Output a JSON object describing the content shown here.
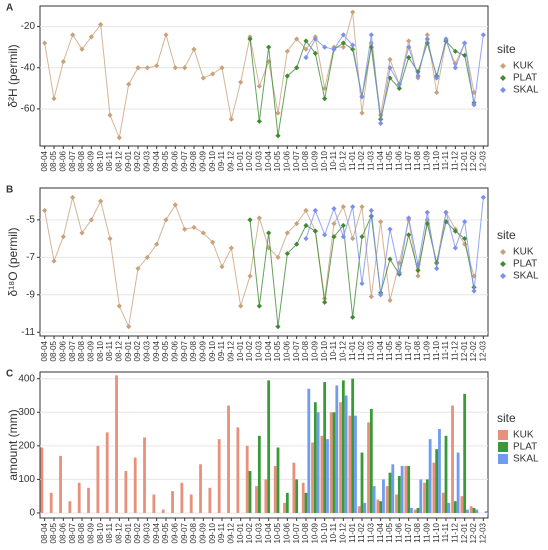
{
  "chart_data": [
    {
      "type": "line",
      "panel": "A",
      "y_label": "δ²H (permil)",
      "legend_title": "site",
      "categories": [
        "08-04",
        "08-05",
        "08-06",
        "08-07",
        "08-08",
        "08-09",
        "08-10",
        "08-11",
        "08-12",
        "09-01",
        "09-02",
        "09-03",
        "09-04",
        "09-05",
        "09-06",
        "09-07",
        "09-08",
        "09-09",
        "09-10",
        "09-11",
        "09-12",
        "10-01",
        "10-02",
        "10-03",
        "10-04",
        "10-05",
        "10-06",
        "10-07",
        "10-08",
        "10-09",
        "10-10",
        "10-11",
        "10-12",
        "11-01",
        "11-02",
        "11-03",
        "11-04",
        "11-05",
        "11-06",
        "11-07",
        "11-08",
        "11-09",
        "11-10",
        "11-11",
        "11-12",
        "12-01",
        "12-02",
        "12-03"
      ],
      "ylim": [
        -78,
        -10
      ],
      "yticks": [
        -60,
        -40,
        -20
      ],
      "grid": true,
      "series": [
        {
          "name": "KUK",
          "color": "#c9a27c",
          "values": [
            -28,
            -55,
            -37,
            -24,
            -31,
            -25,
            -19,
            -63,
            -74,
            -48,
            -40,
            -40,
            -39,
            -24,
            -40,
            -40,
            -31,
            -45,
            -43,
            -40,
            -65,
            -47,
            -25,
            -49,
            -37,
            -62,
            -32,
            -26,
            -31,
            -25,
            -50,
            -30,
            -30,
            -13,
            -62,
            -28,
            -63,
            -36,
            -48,
            -27,
            -45,
            -24,
            -52,
            -27,
            -38,
            -28,
            -52,
            null
          ]
        },
        {
          "name": "PLAT",
          "color": "#3f8a32",
          "values": [
            null,
            null,
            null,
            null,
            null,
            null,
            null,
            null,
            null,
            null,
            null,
            null,
            null,
            null,
            null,
            null,
            null,
            null,
            null,
            null,
            null,
            null,
            -26,
            -66,
            -30,
            -73,
            -44,
            -40,
            -27,
            -33,
            -55,
            -31,
            -28,
            -31,
            -54,
            -30,
            -65,
            -45,
            -50,
            -35,
            -42,
            -28,
            -44,
            -27,
            -32,
            -34,
            -57,
            null
          ]
        },
        {
          "name": "SKAL",
          "color": "#7b8ff0",
          "values": [
            null,
            null,
            null,
            null,
            null,
            null,
            null,
            null,
            null,
            null,
            null,
            null,
            null,
            null,
            null,
            null,
            null,
            null,
            null,
            null,
            null,
            null,
            null,
            null,
            null,
            null,
            null,
            null,
            -35,
            -26,
            -30,
            -31,
            -24,
            -29,
            -54,
            -24,
            -67,
            -40,
            -48,
            -30,
            -44,
            -26,
            -45,
            -26,
            -40,
            -28,
            -58,
            -24
          ]
        }
      ]
    },
    {
      "type": "line",
      "panel": "B",
      "y_label": "δ¹⁸O (permil)",
      "legend_title": "site",
      "categories": [
        "08-04",
        "08-05",
        "08-06",
        "08-07",
        "08-08",
        "08-09",
        "08-10",
        "08-11",
        "08-12",
        "09-01",
        "09-02",
        "09-03",
        "09-04",
        "09-05",
        "09-06",
        "09-07",
        "09-08",
        "09-09",
        "09-10",
        "09-11",
        "09-12",
        "10-01",
        "10-02",
        "10-03",
        "10-04",
        "10-05",
        "10-06",
        "10-07",
        "10-08",
        "10-09",
        "10-10",
        "10-11",
        "10-12",
        "11-01",
        "11-02",
        "11-03",
        "11-04",
        "11-05",
        "11-06",
        "11-07",
        "11-08",
        "11-09",
        "11-10",
        "11-11",
        "11-12",
        "12-01",
        "12-02",
        "12-03"
      ],
      "ylim": [
        -11.2,
        -3.3
      ],
      "yticks": [
        -11,
        -9,
        -7,
        -5
      ],
      "grid": true,
      "series": [
        {
          "name": "KUK",
          "color": "#c9a27c",
          "values": [
            -4.5,
            -7.2,
            -5.9,
            -3.8,
            -5.7,
            -5.0,
            -4.0,
            -6.0,
            -9.6,
            -10.7,
            -7.6,
            -7.0,
            -6.3,
            -5.0,
            -4.2,
            -5.5,
            -5.4,
            -5.7,
            -6.2,
            -7.5,
            -6.5,
            -9.6,
            -8.0,
            -4.9,
            -6.5,
            -7.0,
            -5.7,
            -5.2,
            -4.5,
            -5.6,
            -9.2,
            -5.2,
            -4.3,
            -6.0,
            -4.3,
            -9.1,
            -5.1,
            -9.3,
            -7.3,
            -5.0,
            -8.0,
            -5.0,
            -7.3,
            -4.6,
            -5.5,
            -6.3,
            -8.0,
            null
          ]
        },
        {
          "name": "PLAT",
          "color": "#3f8a32",
          "values": [
            null,
            null,
            null,
            null,
            null,
            null,
            null,
            null,
            null,
            null,
            null,
            null,
            null,
            null,
            null,
            null,
            null,
            null,
            null,
            null,
            null,
            null,
            -5.0,
            -9.6,
            -5.7,
            -10.7,
            -6.8,
            -6.3,
            -5.3,
            -5.6,
            -9.4,
            -5.9,
            -5.3,
            -10.2,
            -5.9,
            -4.8,
            -8.9,
            -7.1,
            -7.9,
            -5.8,
            -7.7,
            -5.2,
            -7.3,
            -5.1,
            -5.6,
            -6.0,
            -8.6,
            null
          ]
        },
        {
          "name": "SKAL",
          "color": "#7b8ff0",
          "values": [
            null,
            null,
            null,
            null,
            null,
            null,
            null,
            null,
            null,
            null,
            null,
            null,
            null,
            null,
            null,
            null,
            null,
            null,
            null,
            null,
            null,
            null,
            null,
            null,
            null,
            null,
            null,
            null,
            -6.0,
            -4.5,
            -5.8,
            -4.4,
            -5.9,
            -4.3,
            -8.4,
            -4.5,
            -9.0,
            -5.5,
            -7.8,
            -4.9,
            -7.4,
            -4.6,
            -7.6,
            -4.6,
            -6.5,
            -5.1,
            -8.8,
            -3.8
          ]
        }
      ]
    },
    {
      "type": "bar",
      "panel": "C",
      "y_label": "amount (mm)",
      "legend_title": "site",
      "categories": [
        "08-04",
        "08-05",
        "08-06",
        "08-07",
        "08-08",
        "08-09",
        "08-10",
        "08-11",
        "08-12",
        "09-01",
        "09-02",
        "09-03",
        "09-04",
        "09-05",
        "09-06",
        "09-07",
        "09-08",
        "09-09",
        "09-10",
        "09-11",
        "09-12",
        "10-01",
        "10-02",
        "10-03",
        "10-04",
        "10-05",
        "10-06",
        "10-07",
        "10-08",
        "10-09",
        "10-10",
        "10-11",
        "10-12",
        "11-01",
        "11-02",
        "11-03",
        "11-04",
        "11-05",
        "11-06",
        "11-07",
        "11-08",
        "11-09",
        "11-10",
        "11-11",
        "11-12",
        "12-01",
        "12-02",
        "12-03"
      ],
      "ylim": [
        -15,
        420
      ],
      "yticks": [
        0,
        100,
        200,
        300,
        400
      ],
      "grid": true,
      "series": [
        {
          "name": "KUK",
          "color": "#e8907c",
          "values": [
            195,
            60,
            170,
            35,
            90,
            75,
            200,
            240,
            410,
            125,
            165,
            225,
            55,
            10,
            65,
            90,
            55,
            145,
            75,
            220,
            320,
            255,
            200,
            80,
            100,
            140,
            30,
            150,
            90,
            210,
            230,
            300,
            330,
            290,
            20,
            270,
            40,
            80,
            55,
            140,
            10,
            90,
            150,
            60,
            320,
            50,
            20,
            null
          ]
        },
        {
          "name": "PLAT",
          "color": "#3a9a3a",
          "values": [
            null,
            null,
            null,
            null,
            null,
            null,
            null,
            null,
            null,
            null,
            null,
            null,
            null,
            null,
            null,
            null,
            null,
            null,
            null,
            null,
            null,
            null,
            125,
            230,
            395,
            195,
            60,
            100,
            60,
            330,
            390,
            300,
            395,
            400,
            180,
            310,
            35,
            120,
            110,
            140,
            15,
            100,
            190,
            230,
            35,
            355,
            15,
            null
          ]
        },
        {
          "name": "SKAL",
          "color": "#6f9cf0",
          "values": [
            null,
            null,
            null,
            null,
            null,
            null,
            null,
            null,
            null,
            null,
            null,
            null,
            null,
            null,
            null,
            null,
            null,
            null,
            null,
            null,
            null,
            null,
            null,
            null,
            null,
            null,
            null,
            null,
            370,
            300,
            220,
            380,
            350,
            290,
            30,
            80,
            100,
            145,
            140,
            15,
            100,
            220,
            250,
            30,
            180,
            10,
            10,
            5
          ]
        }
      ]
    }
  ]
}
